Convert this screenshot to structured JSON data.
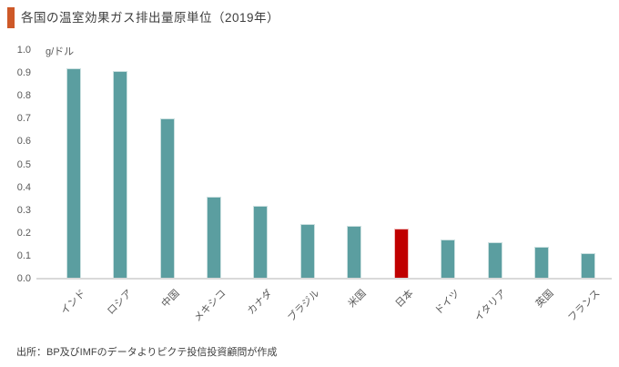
{
  "title": {
    "text": "各国の温室効果ガス排出量原単位（2019年）"
  },
  "axis": {
    "unit_label": "g/ドル",
    "yticks": [
      "1.0",
      "0.9",
      "0.8",
      "0.7",
      "0.6",
      "0.5",
      "0.4",
      "0.3",
      "0.2",
      "0.1",
      "0.0"
    ]
  },
  "source": "出所：BP及びIMFのデータよりピクテ投信投資顧問が作成",
  "colors": {
    "bar": "#5B9EA0",
    "bar_edge": "#CBE0E0",
    "highlight": "#C00000",
    "highlight_edge": "#F0BFBF",
    "accent": "#CE5928",
    "baseline": "#D9D9D9",
    "tick_text": "#595959"
  },
  "chart_data": {
    "type": "bar",
    "title": "各国の温室効果ガス排出量原単位（2019年）",
    "categories": [
      "インド",
      "ロシア",
      "中国",
      "メキシコ",
      "カナダ",
      "ブラジル",
      "米国",
      "日本",
      "ドイツ",
      "イタリア",
      "英国",
      "フランス"
    ],
    "values": [
      0.92,
      0.91,
      0.7,
      0.36,
      0.32,
      0.24,
      0.23,
      0.22,
      0.17,
      0.16,
      0.14,
      0.11
    ],
    "highlight_index": 7,
    "highlight_category": "日本",
    "ylabel": "g/ドル",
    "xlabel": "",
    "ylim": [
      0,
      1.0
    ],
    "ytick_step": 0.1,
    "grid": false,
    "legend": false,
    "source": "出所：BP及びIMFのデータよりピクテ投信投資顧問が作成"
  }
}
